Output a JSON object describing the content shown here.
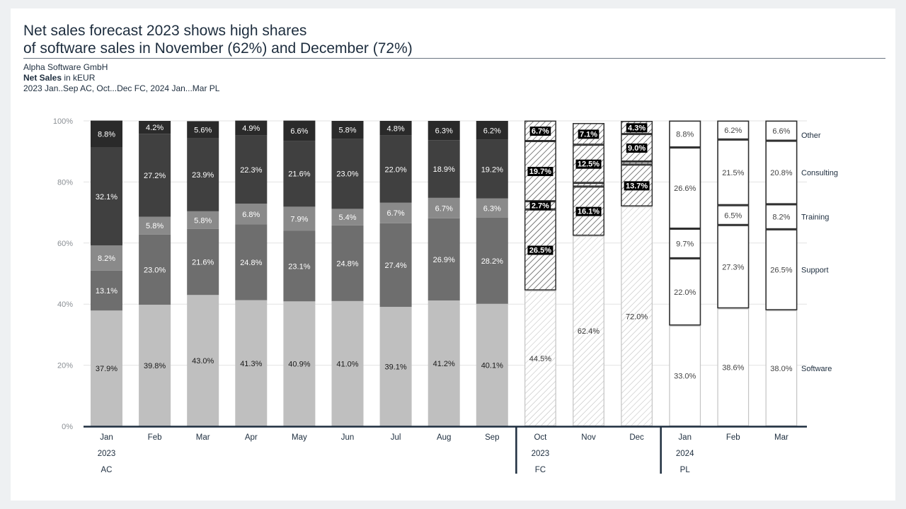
{
  "title": {
    "line1": "Net sales forecast 2023 shows high shares",
    "line2": "of software sales in November (62%) and December (72%)"
  },
  "subtitle": {
    "company": "Alpha Software GmbH",
    "measure": "Net Sales",
    "unit": "in kEUR",
    "period": "2023 Jan..Sep AC, Oct...Dec FC, 2024 Jan...Mar PL"
  },
  "colors": {
    "software": "#bfbfbf",
    "support": "#6e6e6e",
    "training": "#8a8a8a",
    "consulting": "#404040",
    "other": "#2a2a2a",
    "axis": "#1d2d3e",
    "grid": "#e2e2e2"
  },
  "chart_data": {
    "type": "bar",
    "stacked": true,
    "percent": true,
    "ylim": [
      0,
      100
    ],
    "yticks": [
      "0%",
      "20%",
      "40%",
      "60%",
      "80%",
      "100%"
    ],
    "grid": true,
    "categories": [
      "Jan",
      "Feb",
      "Mar",
      "Apr",
      "May",
      "Jun",
      "Jul",
      "Aug",
      "Sep",
      "Oct",
      "Nov",
      "Dec",
      "Jan",
      "Feb",
      "Mar"
    ],
    "scenario": [
      "AC",
      "AC",
      "AC",
      "AC",
      "AC",
      "AC",
      "AC",
      "AC",
      "AC",
      "FC",
      "FC",
      "FC",
      "PL",
      "PL",
      "PL"
    ],
    "groups": [
      {
        "year": "2023",
        "scenario": "AC",
        "start": 0,
        "end": 8
      },
      {
        "year": "2023",
        "scenario": "FC",
        "start": 9,
        "end": 11
      },
      {
        "year": "2024",
        "scenario": "PL",
        "start": 12,
        "end": 14
      }
    ],
    "series": [
      {
        "name": "Software",
        "values": [
          37.9,
          39.8,
          43.0,
          41.3,
          40.9,
          41.0,
          39.1,
          41.2,
          40.1,
          44.5,
          62.4,
          72.0,
          33.0,
          38.6,
          38.0
        ]
      },
      {
        "name": "Support",
        "values": [
          13.1,
          23.0,
          21.6,
          24.8,
          23.1,
          24.8,
          27.4,
          26.9,
          28.2,
          26.5,
          16.1,
          13.7,
          22.0,
          27.3,
          26.5
        ]
      },
      {
        "name": "Training",
        "values": [
          8.2,
          5.8,
          5.8,
          6.8,
          7.9,
          5.4,
          6.7,
          6.7,
          6.3,
          2.7,
          1.2,
          1.0,
          9.7,
          6.5,
          8.2
        ]
      },
      {
        "name": "Consulting",
        "values": [
          32.1,
          27.2,
          23.9,
          22.3,
          21.6,
          23.0,
          22.0,
          18.9,
          19.2,
          19.7,
          12.5,
          9.0,
          26.6,
          21.5,
          20.8
        ]
      },
      {
        "name": "Other",
        "values": [
          8.8,
          4.2,
          5.6,
          4.9,
          6.6,
          5.8,
          4.8,
          6.3,
          6.2,
          6.7,
          7.1,
          4.3,
          8.8,
          6.2,
          6.6
        ]
      }
    ],
    "labels": [
      [
        "37.9%",
        "39.8%",
        "43.0%",
        "41.3%",
        "40.9%",
        "41.0%",
        "39.1%",
        "41.2%",
        "40.1%",
        "44.5%",
        "62.4%",
        "72.0%",
        "33.0%",
        "38.6%",
        "38.0%"
      ],
      [
        "13.1%",
        "23.0%",
        "21.6%",
        "24.8%",
        "23.1%",
        "24.8%",
        "27.4%",
        "26.9%",
        "28.2%",
        "26.5%",
        "16.1%",
        "13.7%",
        "22.0%",
        "27.3%",
        "26.5%"
      ],
      [
        "8.2%",
        "5.8%",
        "5.8%",
        "6.8%",
        "7.9%",
        "5.4%",
        "6.7%",
        "6.7%",
        "6.3%",
        "2.7%",
        "",
        "",
        "9.7%",
        "6.5%",
        "8.2%"
      ],
      [
        "32.1%",
        "27.2%",
        "23.9%",
        "22.3%",
        "21.6%",
        "23.0%",
        "22.0%",
        "18.9%",
        "19.2%",
        "19.7%",
        "12.5%",
        "9.0%",
        "26.6%",
        "21.5%",
        "20.8%"
      ],
      [
        "8.8%",
        "4.2%",
        "5.6%",
        "4.9%",
        "6.6%",
        "5.8%",
        "4.8%",
        "6.3%",
        "6.2%",
        "6.7%",
        "7.1%",
        "4.3%",
        "8.8%",
        "6.2%",
        "6.6%"
      ]
    ]
  }
}
